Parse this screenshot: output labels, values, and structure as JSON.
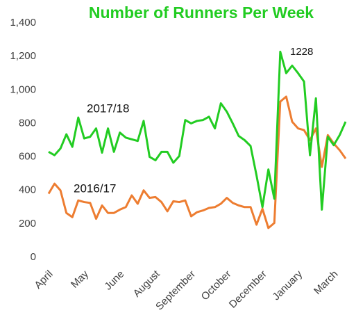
{
  "chart_data": {
    "type": "line",
    "title": "Number of Runners Per Week",
    "categories": [
      "April",
      null,
      null,
      null,
      null,
      null,
      "May",
      null,
      null,
      null,
      null,
      null,
      "June",
      null,
      null,
      null,
      null,
      null,
      "August",
      null,
      null,
      null,
      null,
      null,
      "September",
      null,
      null,
      null,
      null,
      null,
      "October",
      null,
      null,
      null,
      null,
      null,
      "December",
      null,
      null,
      null,
      null,
      null,
      "January",
      null,
      null,
      null,
      null,
      null,
      "March",
      null,
      null
    ],
    "series": [
      {
        "name": "2017/18",
        "color": "#22cc22",
        "values": [
          630,
          610,
          650,
          735,
          660,
          835,
          710,
          720,
          770,
          625,
          770,
          630,
          745,
          715,
          705,
          695,
          815,
          600,
          580,
          630,
          630,
          565,
          605,
          820,
          800,
          815,
          820,
          840,
          770,
          920,
          870,
          800,
          725,
          700,
          665,
          490,
          300,
          525,
          350,
          1228,
          1100,
          1145,
          1100,
          1050,
          610,
          950,
          285,
          720,
          670,
          730,
          810
        ]
      },
      {
        "name": "2016/17",
        "color": "#ed7d31",
        "values": [
          380,
          440,
          400,
          265,
          240,
          340,
          330,
          325,
          230,
          310,
          265,
          265,
          285,
          300,
          370,
          320,
          400,
          355,
          360,
          330,
          275,
          335,
          330,
          340,
          245,
          270,
          280,
          295,
          300,
          320,
          355,
          325,
          310,
          300,
          300,
          195,
          290,
          175,
          205,
          930,
          960,
          810,
          770,
          760,
          700,
          770,
          540,
          730,
          680,
          640,
          590
        ]
      }
    ],
    "annotations": [
      "1228"
    ],
    "ylim": [
      0,
      1400
    ],
    "yticks": [
      0,
      200,
      400,
      600,
      800,
      {
        "value": 1000,
        "label": "1,000"
      },
      {
        "value": 1200,
        "label": "1,200"
      },
      {
        "value": 1400,
        "label": "1,400"
      }
    ],
    "grid": false
  }
}
